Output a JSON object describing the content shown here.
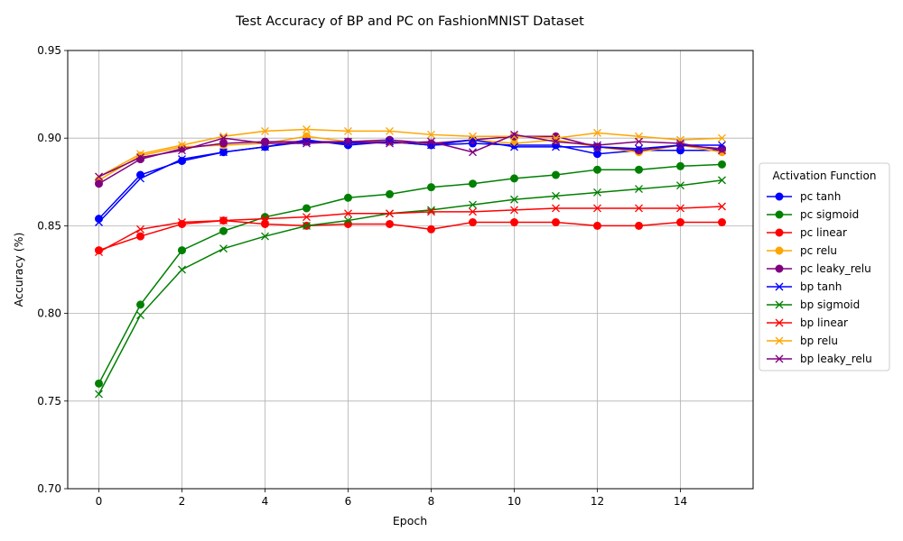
{
  "chart_data": {
    "type": "line",
    "title": "Test Accuracy of BP and PC on FashionMNIST Dataset",
    "xlabel": "Epoch",
    "ylabel": "Accuracy (%)",
    "xlim": [
      -0.75,
      15.75
    ],
    "ylim": [
      0.7,
      0.95
    ],
    "x_ticks": [
      0,
      2,
      4,
      6,
      8,
      10,
      12,
      14
    ],
    "y_ticks": [
      0.7,
      0.75,
      0.8,
      0.85,
      0.9,
      0.95
    ],
    "y_tick_labels": [
      "0.70",
      "0.75",
      "0.80",
      "0.85",
      "0.90",
      "0.95"
    ],
    "grid": true,
    "legend": {
      "title": "Activation Function",
      "placement": "outside-right"
    },
    "x": [
      0,
      1,
      2,
      3,
      4,
      5,
      6,
      7,
      8,
      9,
      10,
      11,
      12,
      13,
      14,
      15
    ],
    "series": [
      {
        "name": "pc tanh",
        "color": "#0000ff",
        "marker": "circle",
        "values": [
          0.854,
          0.879,
          0.887,
          0.892,
          0.895,
          0.899,
          0.896,
          0.898,
          0.896,
          0.897,
          0.896,
          0.896,
          0.891,
          0.893,
          0.893,
          0.893
        ]
      },
      {
        "name": "pc sigmoid",
        "color": "#008000",
        "marker": "circle",
        "values": [
          0.76,
          0.805,
          0.836,
          0.847,
          0.855,
          0.86,
          0.866,
          0.868,
          0.872,
          0.874,
          0.877,
          0.879,
          0.882,
          0.882,
          0.884,
          0.885
        ]
      },
      {
        "name": "pc linear",
        "color": "#ff0000",
        "marker": "circle",
        "values": [
          0.836,
          0.844,
          0.851,
          0.853,
          0.851,
          0.85,
          0.851,
          0.851,
          0.848,
          0.852,
          0.852,
          0.852,
          0.85,
          0.85,
          0.852,
          0.852
        ]
      },
      {
        "name": "pc relu",
        "color": "#ffa500",
        "marker": "circle",
        "values": [
          0.876,
          0.89,
          0.895,
          0.896,
          0.897,
          0.901,
          0.898,
          0.898,
          0.897,
          0.899,
          0.897,
          0.899,
          0.895,
          0.892,
          0.896,
          0.892
        ]
      },
      {
        "name": "pc leaky_relu",
        "color": "#800080",
        "marker": "circle",
        "values": [
          0.874,
          0.888,
          0.894,
          0.897,
          0.898,
          0.898,
          0.898,
          0.899,
          0.897,
          0.899,
          0.901,
          0.901,
          0.895,
          0.893,
          0.896,
          0.894
        ]
      },
      {
        "name": "bp tanh",
        "color": "#0000ff",
        "marker": "x",
        "values": [
          0.852,
          0.877,
          0.888,
          0.892,
          0.895,
          0.898,
          0.897,
          0.898,
          0.896,
          0.899,
          0.895,
          0.895,
          0.895,
          0.894,
          0.896,
          0.896
        ]
      },
      {
        "name": "bp sigmoid",
        "color": "#008000",
        "marker": "x",
        "values": [
          0.754,
          0.799,
          0.825,
          0.837,
          0.844,
          0.85,
          0.853,
          0.857,
          0.859,
          0.862,
          0.865,
          0.867,
          0.869,
          0.871,
          0.873,
          0.876
        ]
      },
      {
        "name": "bp linear",
        "color": "#ff0000",
        "marker": "x",
        "values": [
          0.835,
          0.848,
          0.852,
          0.853,
          0.854,
          0.855,
          0.857,
          0.857,
          0.858,
          0.858,
          0.859,
          0.86,
          0.86,
          0.86,
          0.86,
          0.861
        ]
      },
      {
        "name": "bp relu",
        "color": "#ffa500",
        "marker": "x",
        "values": [
          0.878,
          0.891,
          0.896,
          0.901,
          0.904,
          0.905,
          0.904,
          0.904,
          0.902,
          0.901,
          0.901,
          0.9,
          0.903,
          0.901,
          0.899,
          0.9
        ]
      },
      {
        "name": "bp leaky_relu",
        "color": "#800080",
        "marker": "x",
        "values": [
          0.878,
          0.889,
          0.893,
          0.9,
          0.897,
          0.897,
          0.898,
          0.897,
          0.898,
          0.892,
          0.902,
          0.898,
          0.896,
          0.898,
          0.897,
          0.893
        ]
      }
    ]
  }
}
